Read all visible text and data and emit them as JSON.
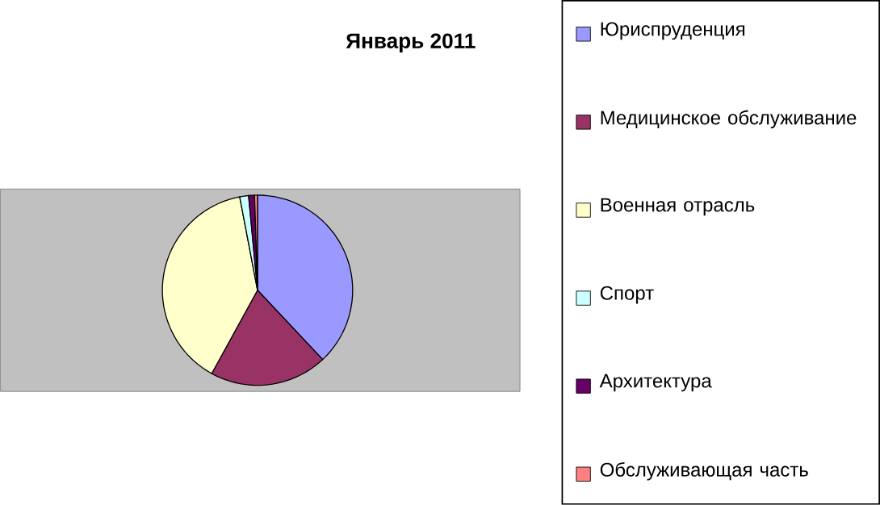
{
  "chart_data": {
    "type": "pie",
    "title": "Январь 2011",
    "categories": [
      "Юриспруденция",
      "Медицинское обслуживание",
      "Военная отрасль",
      "Спорт",
      "Архитектура",
      "Обслуживающая часть"
    ],
    "values": [
      38,
      20,
      39,
      1.5,
      1,
      0.5
    ],
    "colors": [
      "#9999ff",
      "#993366",
      "#ffffcc",
      "#ccffff",
      "#660066",
      "#ff8080"
    ],
    "legend": "right"
  }
}
